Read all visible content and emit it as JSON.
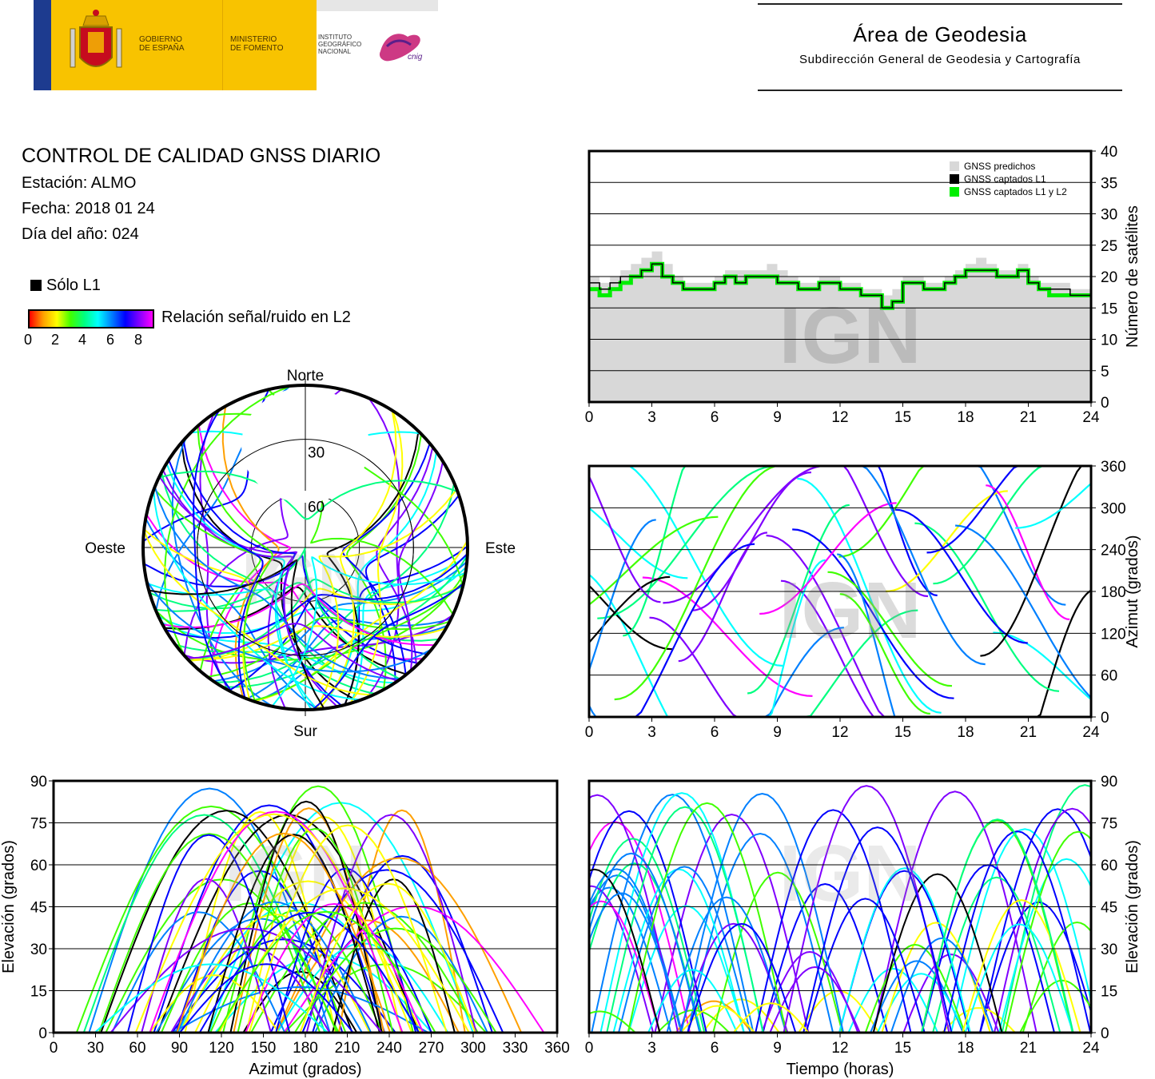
{
  "header": {
    "gov_label": "GOBIERNO\nDE ESPAÑA",
    "ministry_label": "MINISTERIO\nDE FOMENTO",
    "institute_label": "INSTITUTO\nGEOGRÁFICO\nNACIONAL",
    "cnig_label": "cnig",
    "area_title": "Área de Geodesia",
    "area_subtitle": "Subdirección General de Geodesia y Cartografía"
  },
  "report": {
    "title": "CONTROL DE CALIDAD GNSS DIARIO",
    "station": "Estación: ALMO",
    "date": "Fecha: 2018 01 24",
    "doy": "Día del año: 024"
  },
  "legend": {
    "l1_only": "Sólo L1",
    "snr_label": "Relación señal/ruido en L2",
    "snr_ticks": [
      "0",
      "2",
      "4",
      "6",
      "8"
    ]
  },
  "watermark": "IGN",
  "chart_data": [
    {
      "id": "satellites",
      "type": "area",
      "xlabel": "",
      "ylabel": "Número de satélites",
      "xlim": [
        0,
        24
      ],
      "ylim": [
        0,
        40
      ],
      "xticks": [
        "0",
        "3",
        "6",
        "9",
        "12",
        "15",
        "18",
        "21",
        "24"
      ],
      "yticks": [
        "0",
        "5",
        "10",
        "15",
        "20",
        "25",
        "30",
        "35",
        "40"
      ],
      "legend": [
        "GNSS predichos",
        "GNSS captados L1",
        "GNSS captados L1 y L2"
      ],
      "colors": {
        "predicted": "#d8d8d8",
        "l1": "#000000",
        "l1l2": "#00ee00"
      },
      "x": [
        0,
        0.5,
        1,
        1.5,
        2,
        2.5,
        3,
        3.5,
        4,
        4.5,
        5,
        5.5,
        6,
        6.5,
        7,
        7.5,
        8,
        8.5,
        9,
        9.5,
        10,
        10.5,
        11,
        11.5,
        12,
        12.5,
        13,
        13.5,
        14,
        14.5,
        15,
        15.5,
        16,
        16.5,
        17,
        17.5,
        18,
        18.5,
        19,
        19.5,
        20,
        20.5,
        21,
        21.5,
        22,
        22.5,
        23,
        23.5,
        24
      ],
      "predicted": [
        20,
        19,
        20,
        21,
        22,
        23,
        24,
        22,
        20,
        19,
        19,
        19,
        20,
        21,
        21,
        21,
        21,
        22,
        21,
        20,
        19,
        19,
        20,
        20,
        19,
        19,
        18,
        18,
        17,
        18,
        20,
        20,
        19,
        19,
        20,
        21,
        22,
        23,
        22,
        21,
        21,
        22,
        20,
        19,
        19,
        19,
        18,
        18,
        19
      ],
      "l1": [
        19,
        18,
        19,
        20,
        20,
        21,
        22,
        20,
        19,
        18,
        18,
        18,
        19,
        20,
        19,
        20,
        20,
        20,
        19,
        19,
        18,
        18,
        19,
        19,
        18,
        18,
        17,
        17,
        15,
        16,
        19,
        19,
        18,
        18,
        19,
        20,
        21,
        21,
        21,
        20,
        20,
        21,
        19,
        18,
        18,
        18,
        17,
        17,
        18
      ],
      "l1l2": [
        18,
        17,
        18,
        19,
        20,
        21,
        22,
        20,
        19,
        18,
        18,
        18,
        19,
        20,
        19,
        20,
        20,
        20,
        19,
        19,
        18,
        18,
        19,
        19,
        18,
        18,
        17,
        17,
        15,
        16,
        19,
        19,
        18,
        18,
        19,
        20,
        21,
        21,
        21,
        20,
        20,
        21,
        19,
        18,
        17,
        17,
        17,
        17,
        17
      ]
    },
    {
      "id": "azimuth-time",
      "type": "scatter",
      "xlabel": "",
      "ylabel": "Azimut (grados)",
      "xlim": [
        0,
        24
      ],
      "ylim": [
        0,
        360
      ],
      "xticks": [
        "0",
        "3",
        "6",
        "9",
        "12",
        "15",
        "18",
        "21",
        "24"
      ],
      "yticks": [
        "0",
        "60",
        "120",
        "180",
        "240",
        "300",
        "360"
      ],
      "color_scale": "Relación señal/ruido en L2 (0–8)"
    },
    {
      "id": "skyplot",
      "type": "scatter",
      "directions": {
        "north": "Norte",
        "south": "Sur",
        "east": "Este",
        "west": "Oeste"
      },
      "ring_labels": [
        "30",
        "60"
      ],
      "color_scale": "Relación señal/ruido en L2 (0–8)"
    },
    {
      "id": "elevation-azimuth",
      "type": "scatter",
      "xlabel": "Azimut (grados)",
      "ylabel": "Elevación (grados)",
      "xlim": [
        0,
        360
      ],
      "ylim": [
        0,
        90
      ],
      "xticks": [
        "0",
        "30",
        "60",
        "90",
        "120",
        "150",
        "180",
        "210",
        "240",
        "270",
        "300",
        "330",
        "360"
      ],
      "yticks": [
        "0",
        "15",
        "30",
        "45",
        "60",
        "75",
        "90"
      ],
      "color_scale": "Relación señal/ruido en L2 (0–8)"
    },
    {
      "id": "elevation-time",
      "type": "scatter",
      "xlabel": "Tiempo (horas)",
      "ylabel": "Elevación (grados)",
      "xlim": [
        0,
        24
      ],
      "ylim": [
        0,
        90
      ],
      "xticks": [
        "0",
        "3",
        "6",
        "9",
        "12",
        "15",
        "18",
        "21",
        "24"
      ],
      "yticks": [
        "0",
        "15",
        "30",
        "45",
        "60",
        "75",
        "90"
      ],
      "color_scale": "Relación señal/ruido en L2 (0–8)"
    }
  ]
}
